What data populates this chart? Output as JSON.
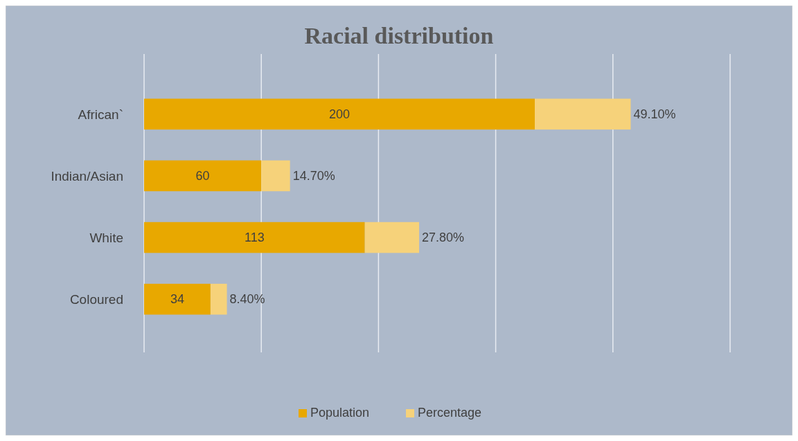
{
  "chart_data": {
    "type": "bar",
    "title": "Racial distribution",
    "orientation": "horizontal",
    "stacked": true,
    "categories": [
      "African`",
      "Indian/Asian",
      "White",
      "Coloured"
    ],
    "series": [
      {
        "name": "Population",
        "color": "#e8a800",
        "values": [
          200,
          60,
          113,
          34
        ],
        "value_labels": [
          "200",
          "60",
          "113",
          "34"
        ]
      },
      {
        "name": "Percentage",
        "color": "#f6d27a",
        "values": [
          49.1,
          14.7,
          27.8,
          8.4
        ],
        "value_labels": [
          "49.10%",
          "14.70%",
          "27.80%",
          "8.40%"
        ]
      }
    ],
    "xlim": [
      0,
      300
    ],
    "xticks": [
      {
        "value": 0,
        "label": null
      },
      {
        "value": 60,
        "label": null
      },
      {
        "value": 120,
        "label": null
      },
      {
        "value": 180,
        "label": null
      },
      {
        "value": 240,
        "label": null
      },
      {
        "value": 300,
        "label": null
      }
    ],
    "tick_labels": "y",
    "grid": "x",
    "legend": "bottom"
  }
}
